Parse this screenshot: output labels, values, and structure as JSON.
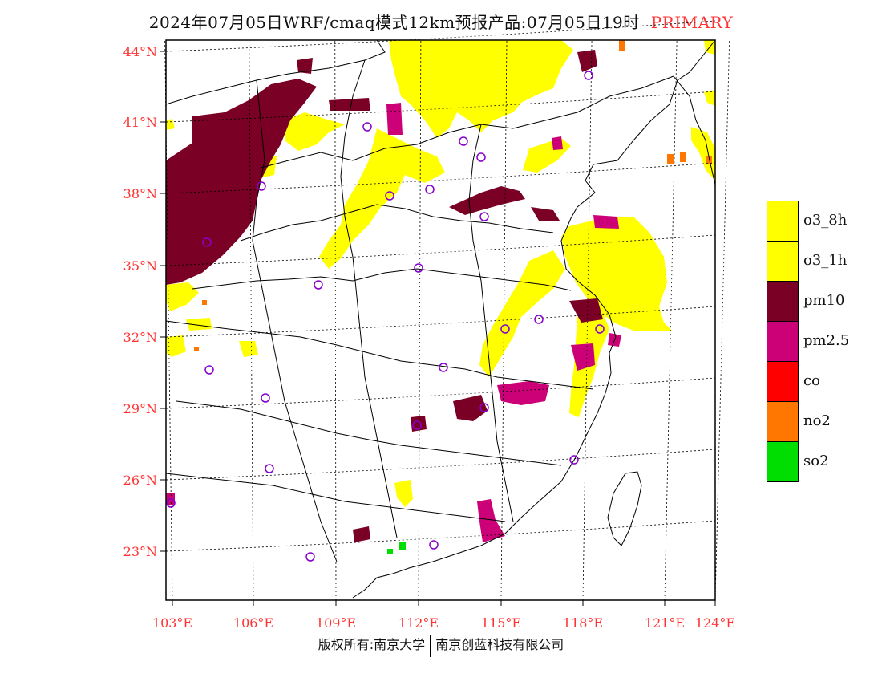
{
  "header": {
    "title": "2024年07月05日WRF/cmaq模式12km预报产品:07月05日19时",
    "tag": "PRIMARY",
    "tag_color": "#ff3333"
  },
  "map": {
    "lat_labels": [
      "44°N",
      "41°N",
      "38°N",
      "35°N",
      "32°N",
      "29°N",
      "26°N",
      "23°N"
    ],
    "lon_labels": [
      "103°E",
      "106°E",
      "109°E",
      "112°E",
      "115°E",
      "118°E",
      "121°E",
      "124°E"
    ],
    "axis_label_color": "#ff3333",
    "pollutant_colors": {
      "o3": "#ffff00",
      "pm10": "#7a0026",
      "pm25": "#cc0077",
      "co": "#ff0000",
      "no2": "#ff7700",
      "so2": "#00dd00",
      "station": "#8800cc"
    }
  },
  "legend": {
    "items": [
      {
        "label": "o3_8h",
        "color": "#ffff00"
      },
      {
        "label": "o3_1h",
        "color": "#ffff00"
      },
      {
        "label": "pm10",
        "color": "#7a0026"
      },
      {
        "label": "pm2.5",
        "color": "#cc0077"
      },
      {
        "label": "co",
        "color": "#ff0000"
      },
      {
        "label": "no2",
        "color": "#ff7700"
      },
      {
        "label": "so2",
        "color": "#00dd00"
      }
    ]
  },
  "footer": {
    "left": "版权所有:南京大学",
    "right": "南京创蓝科技有限公司"
  }
}
